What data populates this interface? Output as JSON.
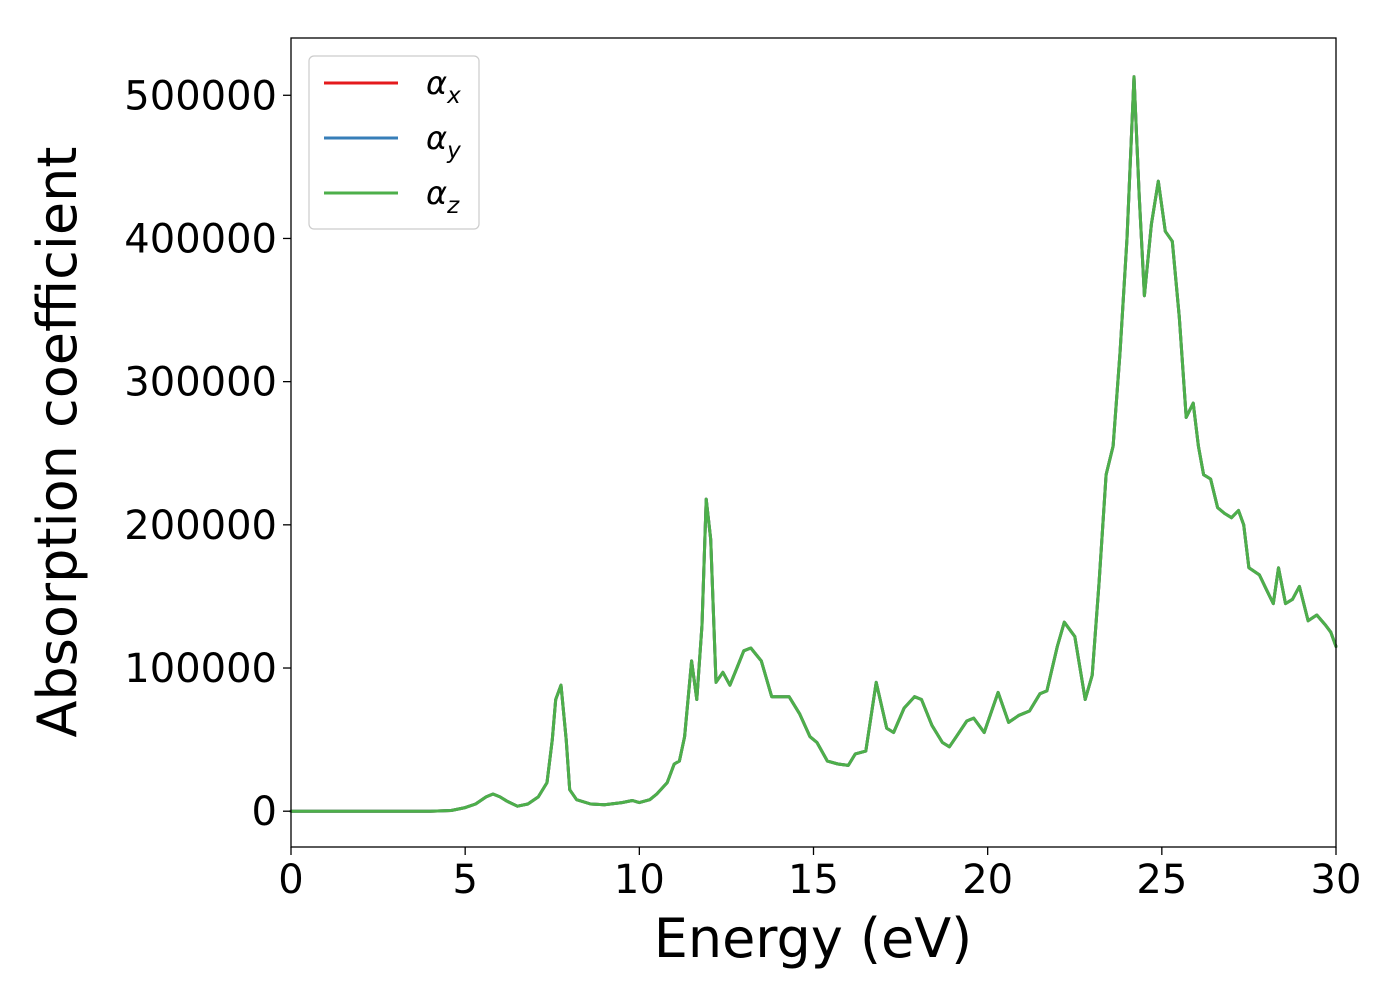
{
  "chart_data": {
    "type": "line",
    "xlabel": "Energy (eV)",
    "ylabel": "Absorption coefficient",
    "xlim": [
      0,
      30
    ],
    "ylim": [
      -25000,
      540000
    ],
    "xticks": [
      0,
      5,
      10,
      15,
      20,
      25,
      30
    ],
    "xtick_labels": [
      "0",
      "5",
      "10",
      "15",
      "20",
      "25",
      "30"
    ],
    "yticks": [
      0,
      100000,
      200000,
      300000,
      400000,
      500000
    ],
    "ytick_labels": [
      "0",
      "100000",
      "200000",
      "300000",
      "400000",
      "500000"
    ],
    "grid": false,
    "legend_position": "top-left",
    "series": [
      {
        "name": "α",
        "subscript": "x",
        "color": "#e41a1c"
      },
      {
        "name": "α",
        "subscript": "y",
        "color": "#377eb8"
      },
      {
        "name": "α",
        "subscript": "z",
        "color": "#4daf4a"
      }
    ],
    "x": [
      0,
      1,
      2,
      3,
      4,
      4.6,
      5.0,
      5.3,
      5.6,
      5.8,
      6.0,
      6.2,
      6.5,
      6.8,
      7.1,
      7.35,
      7.5,
      7.6,
      7.75,
      7.9,
      8.0,
      8.2,
      8.6,
      9.0,
      9.5,
      9.8,
      10.0,
      10.3,
      10.5,
      10.8,
      11.0,
      11.15,
      11.3,
      11.5,
      11.65,
      11.8,
      11.92,
      12.05,
      12.2,
      12.4,
      12.6,
      12.8,
      13.0,
      13.2,
      13.5,
      13.8,
      14.1,
      14.3,
      14.6,
      14.9,
      15.1,
      15.4,
      15.7,
      16.0,
      16.2,
      16.5,
      16.8,
      17.1,
      17.3,
      17.6,
      17.9,
      18.1,
      18.4,
      18.7,
      18.9,
      19.1,
      19.4,
      19.6,
      19.9,
      20.0,
      20.3,
      20.6,
      20.9,
      21.2,
      21.5,
      21.7,
      22.0,
      22.2,
      22.5,
      22.8,
      23.0,
      23.2,
      23.4,
      23.6,
      23.8,
      24.0,
      24.2,
      24.35,
      24.5,
      24.7,
      24.9,
      25.1,
      25.3,
      25.5,
      25.7,
      25.9,
      26.05,
      26.2,
      26.4,
      26.6,
      26.8,
      27.0,
      27.2,
      27.35,
      27.5,
      27.8,
      28.0,
      28.2,
      28.35,
      28.55,
      28.75,
      28.95,
      29.2,
      29.45,
      29.7,
      29.85,
      30.0
    ],
    "values": [
      0,
      0,
      0,
      0,
      0,
      500,
      2500,
      5000,
      10000,
      12000,
      10000,
      7000,
      3500,
      5000,
      10000,
      20000,
      50000,
      78000,
      88000,
      50000,
      15000,
      8000,
      5000,
      4500,
      6000,
      7500,
      6000,
      8000,
      12000,
      20000,
      33000,
      35000,
      52000,
      105000,
      78000,
      130000,
      218000,
      190000,
      90000,
      97000,
      88000,
      100000,
      112000,
      114000,
      105000,
      80000,
      80000,
      80000,
      68000,
      52000,
      48000,
      35000,
      33000,
      32000,
      40000,
      42000,
      90000,
      58000,
      55000,
      72000,
      80000,
      78000,
      60000,
      48000,
      45000,
      52000,
      63000,
      65000,
      55000,
      62000,
      83000,
      62000,
      67000,
      70000,
      82000,
      84000,
      115000,
      132000,
      122000,
      78000,
      95000,
      160000,
      235000,
      255000,
      320000,
      400000,
      513000,
      430000,
      360000,
      410000,
      440000,
      405000,
      398000,
      345000,
      275000,
      285000,
      255000,
      235000,
      232000,
      212000,
      208000,
      205000,
      210000,
      200000,
      170000,
      165000,
      155000,
      145000,
      170000,
      145000,
      148000,
      157000,
      133000,
      137000,
      130000,
      125000,
      115000
    ]
  }
}
